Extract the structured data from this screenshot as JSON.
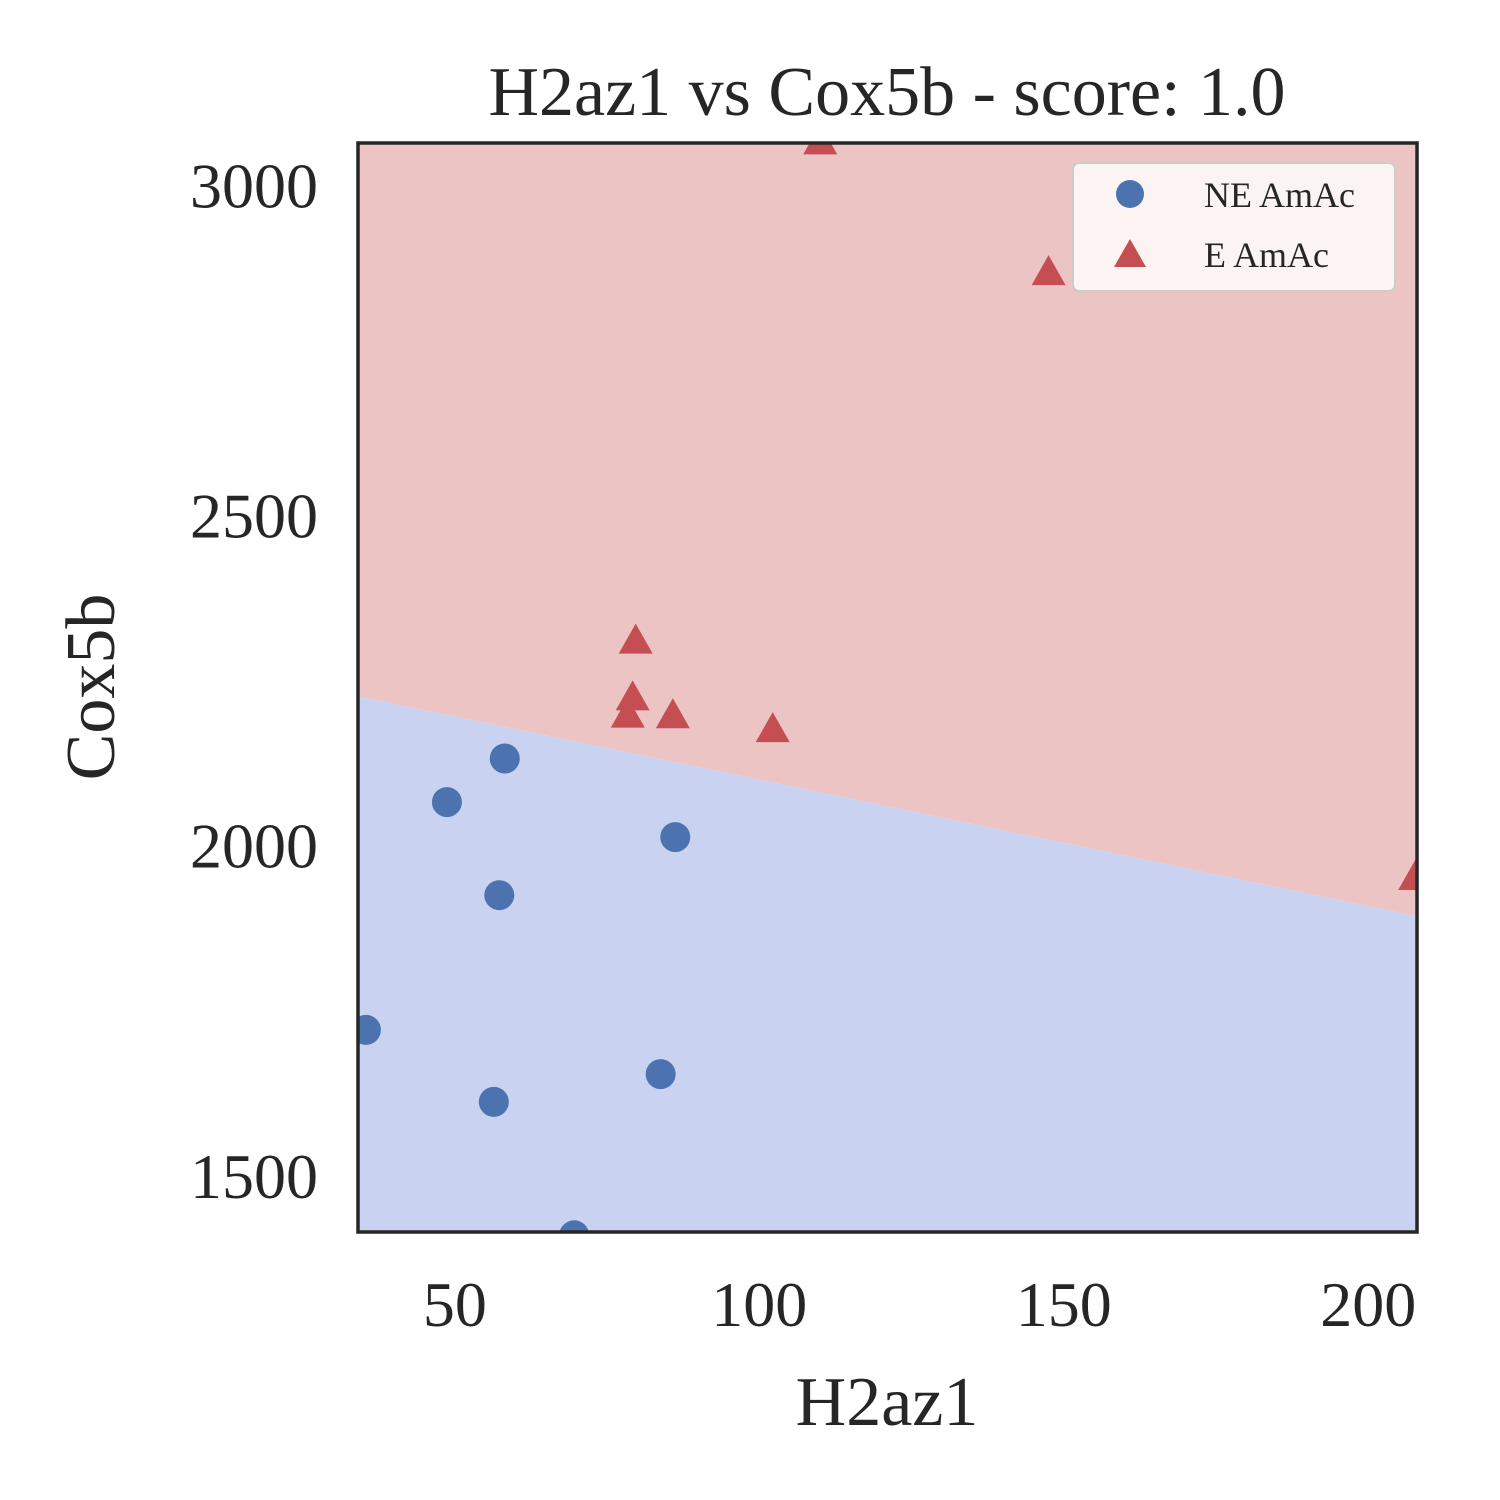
{
  "chart_data": {
    "type": "scatter",
    "title": "H2az1 vs Cox5b - score: 1.0",
    "xlabel": "H2az1",
    "ylabel": "Cox5b",
    "xlim": [
      34.1,
      208.0
    ],
    "ylim": [
      1415,
      3064
    ],
    "xticks": [
      50,
      100,
      150,
      200
    ],
    "yticks": [
      1500,
      2000,
      2500,
      3000
    ],
    "grid": false,
    "legend_position": "upper right",
    "decision_boundary": {
      "x": [
        34.1,
        208.0
      ],
      "y": [
        2226,
        1893
      ],
      "region_above": "E AmAc",
      "region_below": "NE AmAc"
    },
    "series": [
      {
        "name": "NE AmAc",
        "marker": "circle",
        "color": "#4c72b0",
        "region_color": "#c9d2f1",
        "points": [
          [
            35.4,
            1721
          ],
          [
            48.7,
            2066
          ],
          [
            58.2,
            2132
          ],
          [
            57.3,
            1925
          ],
          [
            86.2,
            2013
          ],
          [
            83.8,
            1654
          ],
          [
            56.4,
            1612
          ],
          [
            69.6,
            1410
          ]
        ]
      },
      {
        "name": "E AmAc",
        "marker": "triangle",
        "color": "#c44e52",
        "region_color": "#edc4c4",
        "points": [
          [
            110.0,
            3065
          ],
          [
            147.5,
            2867
          ],
          [
            79.7,
            2309
          ],
          [
            79.2,
            2223
          ],
          [
            78.4,
            2197
          ],
          [
            85.8,
            2196
          ],
          [
            102.2,
            2175
          ],
          [
            207.7,
            1951
          ]
        ]
      }
    ]
  }
}
